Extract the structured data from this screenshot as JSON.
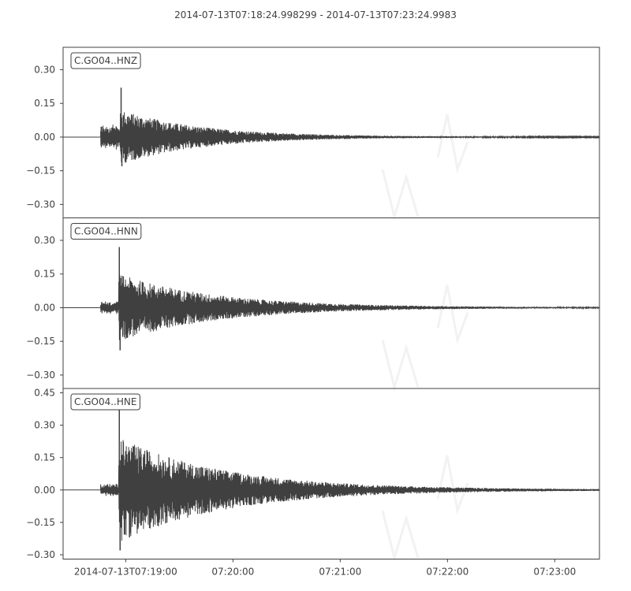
{
  "chart_data": {
    "type": "line",
    "title": "2014-07-13T07:18:24.998299  -  2014-07-13T07:23:24.9983",
    "x_axis": {
      "range": [
        "2014-07-13T07:18:24.998299",
        "2014-07-13T07:23:24.9983"
      ],
      "ticks": [
        {
          "time": "2014-07-13T07:19:00",
          "label": "2014-07-13T07:19:00"
        },
        {
          "time": "2014-07-13T07:20:00",
          "label": "07:20:00"
        },
        {
          "time": "2014-07-13T07:21:00",
          "label": "07:21:00"
        },
        {
          "time": "2014-07-13T07:22:00",
          "label": "07:22:00"
        },
        {
          "time": "2014-07-13T07:23:00",
          "label": "07:23:00"
        }
      ]
    },
    "panels": [
      {
        "name": "C.GO04..HNZ",
        "ylim": [
          -0.36,
          0.4
        ],
        "yticks": [
          0.3,
          0.15,
          0.0,
          -0.15,
          -0.3
        ],
        "ytick_labels": [
          "0.30",
          "0.15",
          "0.00",
          "−0.15",
          "−0.30"
        ],
        "p_arrival": "2014-07-13T07:18:46",
        "s_arrival": "2014-07-13T07:18:57",
        "peak_positive": 0.22,
        "peak_negative": -0.13,
        "pre_s_amplitude": 0.06,
        "decay_seconds": 45
      },
      {
        "name": "C.GO04..HNN",
        "ylim": [
          -0.36,
          0.4
        ],
        "yticks": [
          0.3,
          0.15,
          0.0,
          -0.15,
          -0.3
        ],
        "ytick_labels": [
          "0.30",
          "0.15",
          "0.00",
          "−0.15",
          "−0.30"
        ],
        "p_arrival": "2014-07-13T07:18:46",
        "s_arrival": "2014-07-13T07:18:56",
        "peak_positive": 0.27,
        "peak_negative": -0.19,
        "pre_s_amplitude": 0.03,
        "decay_seconds": 55
      },
      {
        "name": "C.GO04..HNE",
        "ylim": [
          -0.32,
          0.47
        ],
        "yticks": [
          0.45,
          0.3,
          0.15,
          0.0,
          -0.15,
          -0.3
        ],
        "ytick_labels": [
          "0.45",
          "0.30",
          "0.15",
          "0.00",
          "−0.15",
          "−0.30"
        ],
        "p_arrival": "2014-07-13T07:18:46",
        "s_arrival": "2014-07-13T07:18:56",
        "peak_positive": 0.44,
        "peak_negative": -0.28,
        "pre_s_amplitude": 0.03,
        "decay_seconds": 60
      }
    ],
    "grid": false,
    "line_color": "#404040",
    "watermark_color": "#f2f2f2"
  }
}
